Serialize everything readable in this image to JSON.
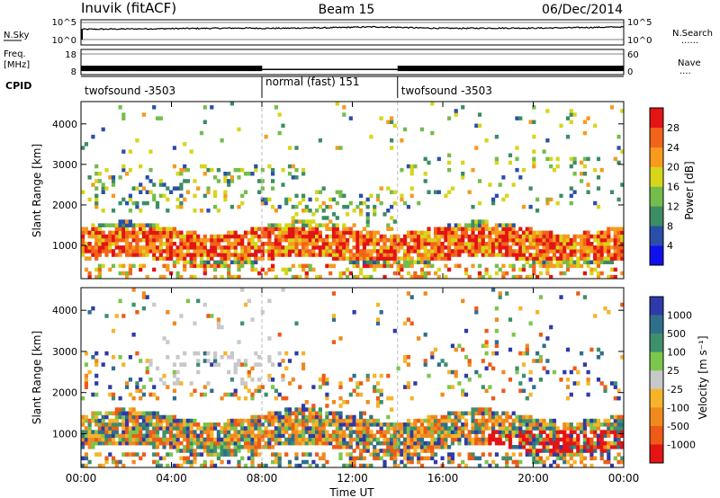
{
  "header": {
    "station": "Inuvik (fitACF)",
    "beam": "Beam 15",
    "date": "06/Dec/2014"
  },
  "labels": {
    "nsky": "N.Sky",
    "nsearch": "N.Search",
    "freq": "Freq.",
    "mhz": "[MHz]",
    "nave": "Nave",
    "cpid": "CPID",
    "nsky_ticks": [
      "10^5",
      "10^0"
    ],
    "nsearch_ticks": [
      "10^5",
      "10^0"
    ],
    "freq_ticks": [
      "18",
      "8"
    ],
    "nave_ticks": [
      "60",
      "0"
    ],
    "dots": "......",
    "dots_short": "...."
  },
  "cpid_segments": [
    {
      "label": "twofsound -3503",
      "start_h": 0,
      "end_h": 8
    },
    {
      "label": "normal (fast) 151",
      "start_h": 8,
      "end_h": 14
    },
    {
      "label": "twofsound -3503",
      "start_h": 14,
      "end_h": 24
    }
  ],
  "colors": {
    "power": [
      "#1010ee",
      "#2a4faa",
      "#3c8c64",
      "#74bc4c",
      "#d6d61a",
      "#f79a1e",
      "#f2641a",
      "#e21414"
    ],
    "velocity_pos": [
      "#2e3aa8",
      "#2f6f8c",
      "#3e8f6c",
      "#7cc64b"
    ],
    "velocity_grey": "#c8c8c8",
    "velocity_neg": [
      "#f5b42a",
      "#f08a1f",
      "#ee5b17",
      "#e51414"
    ]
  },
  "chart_data": [
    {
      "type": "heatmap",
      "title": "Power",
      "xlabel": "Time UT",
      "ylabel": "Slant Range [km]",
      "xlim": [
        0,
        24
      ],
      "ylim": [
        180,
        4550
      ],
      "x_ticks": [
        "00:00",
        "04:00",
        "08:00",
        "12:00",
        "16:00",
        "20:00",
        "00:00"
      ],
      "y_ticks": [
        1000,
        2000,
        3000,
        4000
      ],
      "colorbar_label": "Power [dB]",
      "colorbar_ticks": [
        "4",
        "8",
        "12",
        "16",
        "20",
        "24",
        "28"
      ]
    },
    {
      "type": "heatmap",
      "title": "Velocity",
      "xlabel": "Time UT",
      "ylabel": "Slant Range [km]",
      "xlim": [
        0,
        24
      ],
      "ylim": [
        180,
        4550
      ],
      "x_ticks": [
        "00:00",
        "04:00",
        "08:00",
        "12:00",
        "16:00",
        "20:00",
        "00:00"
      ],
      "y_ticks": [
        1000,
        2000,
        3000,
        4000
      ],
      "colorbar_label": "Velocity [m s⁻¹]",
      "colorbar_ticks": [
        "1000",
        "500",
        "100",
        "25",
        "-25",
        "-100",
        "-500",
        "-1000"
      ]
    },
    {
      "type": "line",
      "title": "N.Sky",
      "ylim_log10": [
        0,
        5
      ],
      "series": [
        {
          "values_log10_hourly": [
            3.0,
            3.05,
            3.1,
            3.15,
            3.2,
            3.25,
            3.3,
            3.35,
            3.3,
            3.3,
            3.4,
            3.45,
            3.6,
            3.7,
            3.6,
            3.4,
            3.3,
            3.3,
            3.35,
            3.35,
            3.35,
            3.4,
            3.5,
            3.6,
            3.7
          ]
        }
      ]
    },
    {
      "type": "line",
      "title": "Freq.",
      "ylim": [
        8,
        18
      ],
      "series": [
        {
          "values_hourly": [
            11.0,
            11.0,
            11.0,
            11.0,
            11.0,
            11.0,
            11.0,
            11.0,
            10.5,
            10.5,
            10.5,
            10.5,
            10.5,
            10.5,
            11.0,
            11.0,
            11.0,
            11.0,
            11.0,
            11.0,
            11.0,
            11.0,
            11.0,
            11.0,
            11.0
          ]
        }
      ]
    }
  ]
}
